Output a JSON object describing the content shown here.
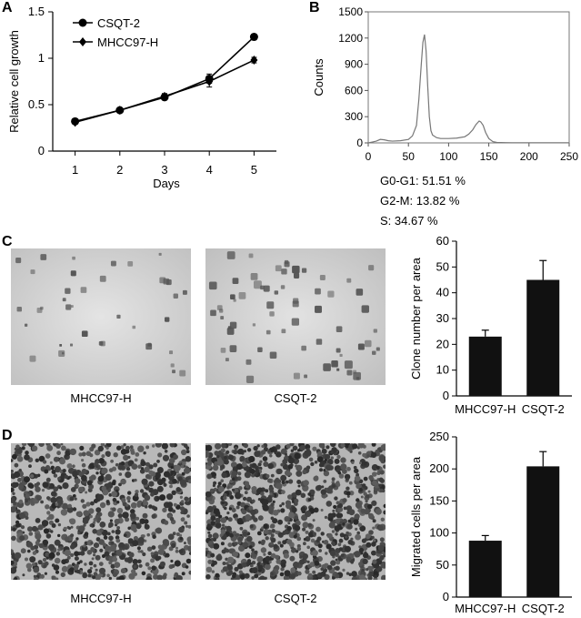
{
  "panels": {
    "a": {
      "letter": "A"
    },
    "b": {
      "letter": "B"
    },
    "c": {
      "letter": "C",
      "photo_labels": [
        "MHCC97-H",
        "CSQT-2"
      ]
    },
    "d": {
      "letter": "D",
      "photo_labels": [
        "MHCC97-H",
        "CSQT-2"
      ]
    }
  },
  "cell_cycle_stats": {
    "g0g1": "G0-G1: 51.51 %",
    "g2m": "G2-M: 13.82 %",
    "s": "S: 34.67 %"
  },
  "chart_data": [
    {
      "panel": "A",
      "type": "line",
      "xlabel": "Days",
      "ylabel": "Relative cell growth",
      "x": [
        1,
        2,
        3,
        4,
        5
      ],
      "xlim": [
        0.5,
        5.5
      ],
      "ylim": [
        0,
        1.5
      ],
      "xticks": [
        "1",
        "2",
        "3",
        "4",
        "5"
      ],
      "yticks": [
        "0",
        "0.5",
        "1",
        "1.5"
      ],
      "legend_position": "top-left",
      "series": [
        {
          "name": "CSQT-2",
          "marker": "circle",
          "values": [
            0.32,
            0.44,
            0.58,
            0.78,
            1.23
          ],
          "errors": [
            0.02,
            0.02,
            0.03,
            0.05,
            0.03
          ]
        },
        {
          "name": "MHCC97-H",
          "marker": "diamond",
          "values": [
            0.31,
            0.44,
            0.59,
            0.75,
            0.98
          ],
          "errors": [
            0.02,
            0.02,
            0.03,
            0.06,
            0.03
          ]
        }
      ]
    },
    {
      "panel": "B",
      "type": "line",
      "xlabel": "",
      "ylabel": "Counts",
      "xlim": [
        0,
        250
      ],
      "ylim": [
        0,
        1500
      ],
      "xticks": [
        "0",
        "50",
        "100",
        "150",
        "200",
        "250"
      ],
      "yticks": [
        "0",
        "300",
        "600",
        "900",
        "1200",
        "1500"
      ],
      "x": [
        0,
        5,
        10,
        15,
        20,
        25,
        30,
        40,
        50,
        55,
        60,
        63,
        66,
        68,
        70,
        72,
        74,
        76,
        78,
        80,
        85,
        90,
        100,
        110,
        120,
        125,
        130,
        134,
        138,
        140,
        143,
        146,
        150,
        155,
        160,
        170,
        180,
        200,
        220,
        240,
        250
      ],
      "series": [
        {
          "values": [
            0,
            10,
            20,
            40,
            35,
            25,
            20,
            25,
            40,
            80,
            200,
            500,
            900,
            1150,
            1240,
            1050,
            650,
            300,
            140,
            90,
            60,
            50,
            50,
            55,
            70,
            100,
            150,
            210,
            250,
            240,
            200,
            120,
            50,
            15,
            5,
            3,
            2,
            2,
            2,
            2,
            2
          ]
        }
      ]
    },
    {
      "panel": "C",
      "type": "bar",
      "categories": [
        "MHCC97-H",
        "CSQT-2"
      ],
      "values": [
        23,
        45
      ],
      "errors": [
        2.5,
        7.5
      ],
      "ylabel": "Clone number per area",
      "ylim": [
        0,
        60
      ],
      "yticks": [
        "0",
        "10",
        "20",
        "30",
        "40",
        "50",
        "60"
      ]
    },
    {
      "panel": "D",
      "type": "bar",
      "categories": [
        "MHCC97-H",
        "CSQT-2"
      ],
      "values": [
        88,
        204
      ],
      "errors": [
        8,
        23
      ],
      "ylabel": "Migrated cells per area",
      "ylim": [
        0,
        250
      ],
      "yticks": [
        "0",
        "50",
        "100",
        "150",
        "200",
        "250"
      ]
    }
  ]
}
